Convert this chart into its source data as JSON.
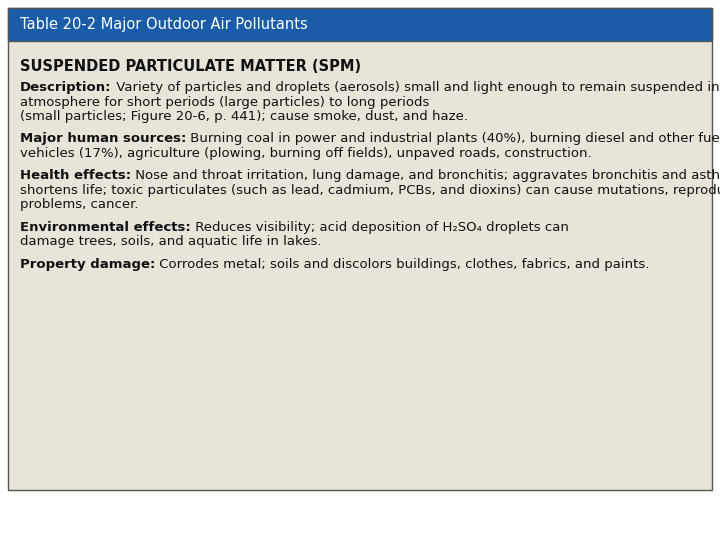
{
  "title": "Table 20-2 Major Outdoor Air Pollutants",
  "title_bg": "#1a5ca8",
  "title_color": "#ffffff",
  "title_fontsize": 10.5,
  "content_bg": "#e8e4d8",
  "outer_bg": "#ffffff",
  "border_color": "#555555",
  "section_title": "SUSPENDED PARTICULATE MATTER (SPM)",
  "section_title_fontsize": 10.5,
  "body_fontsize": 9.5,
  "paragraphs": [
    {
      "label": "Description:",
      "lines": [
        " Variety of particles and droplets (aerosols) small and light enough to remain suspended in",
        "atmosphere for short periods (large particles) to long periods",
        "(small particles; Figure 20-6, p. 441); cause smoke, dust, and haze."
      ]
    },
    {
      "label": "Major human sources:",
      "lines": [
        " Burning coal in power and industrial plants (40%), burning diesel and other fuels in",
        "vehicles (17%), agriculture (plowing, burning off fields), unpaved roads, construction."
      ]
    },
    {
      "label": "Health effects:",
      "lines": [
        " Nose and throat irritation, lung damage, and bronchitis; aggravates bronchitis and asthma;",
        "shortens life; toxic particulates (such as lead, cadmium, PCBs, and dioxins) can cause mutations, reproductive",
        "problems, cancer."
      ]
    },
    {
      "label": "Environmental effects:",
      "lines": [
        " Reduces visibility; acid deposition of H₂SO₄ droplets can",
        "damage trees, soils, and aquatic life in lakes."
      ]
    },
    {
      "label": "Property damage:",
      "lines": [
        " Corrodes metal; soils and discolors buildings, clothes, fabrics, and paints."
      ]
    }
  ]
}
